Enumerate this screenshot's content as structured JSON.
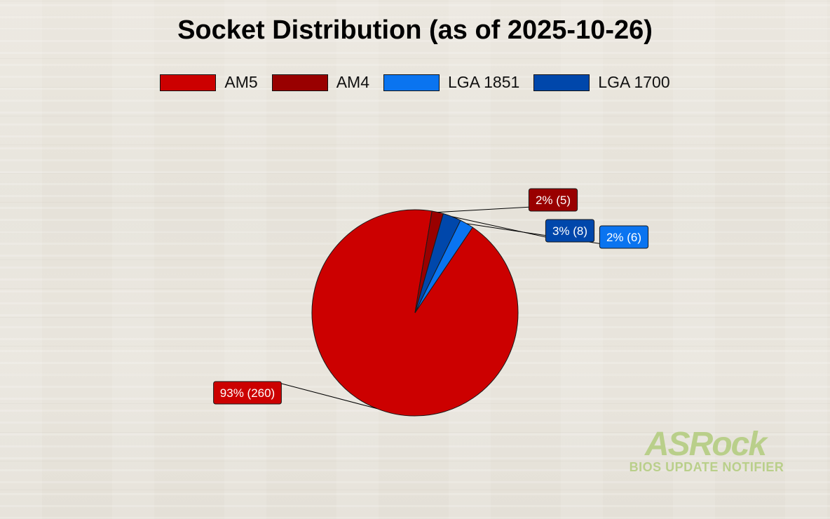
{
  "chart_data": {
    "type": "pie",
    "title": "Socket Distribution (as of 2025-10-26)",
    "legend_position": "top",
    "slices": [
      {
        "name": "AM5",
        "value": 260,
        "label": "93% (260)",
        "color": "#cc0000"
      },
      {
        "name": "AM4",
        "value": 5,
        "label": "2% (5)",
        "color": "#990000"
      },
      {
        "name": "LGA 1700",
        "value": 8,
        "label": "3% (8)",
        "color": "#0047ab"
      },
      {
        "name": "LGA 1851",
        "value": 6,
        "label": "2% (6)",
        "color": "#0a74f0"
      }
    ],
    "legend": [
      {
        "name": "AM5",
        "color": "#cc0000"
      },
      {
        "name": "AM4",
        "color": "#990000"
      },
      {
        "name": "LGA 1851",
        "color": "#0a74f0"
      },
      {
        "name": "LGA 1700",
        "color": "#0047ab"
      }
    ]
  },
  "logo": {
    "brand": "ASRock",
    "subtitle": "BIOS UPDATE NOTIFIER",
    "color": "#b9cf8a"
  }
}
